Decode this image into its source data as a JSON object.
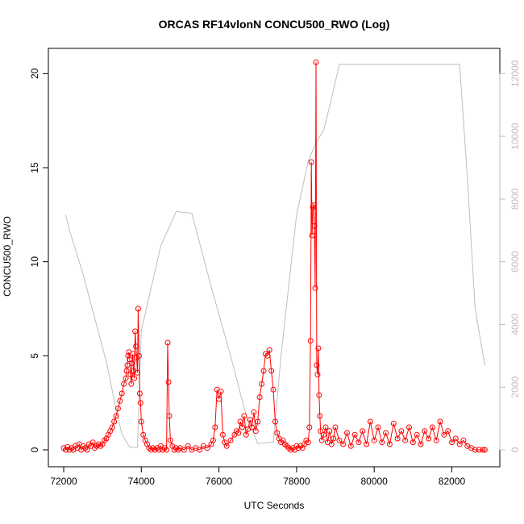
{
  "chart_data": {
    "type": "scatter",
    "title": "ORCAS RF14vlonN CONCU500_RWO (Log)",
    "xlabel": "UTC Seconds",
    "ylabel": "CONCU500_RWO",
    "xlim": [
      72000,
      82900
    ],
    "ylim": [
      0,
      21
    ],
    "y2lim": [
      0,
      12600
    ],
    "x_ticks": [
      72000,
      74000,
      76000,
      78000,
      80000,
      82000
    ],
    "y_ticks": [
      0,
      5,
      10,
      15,
      20
    ],
    "y2_ticks": [
      0,
      2000,
      4000,
      6000,
      8000,
      10000,
      12000
    ],
    "grid": false,
    "colors": {
      "series": "#ff0000",
      "altitude": "#bebebe"
    },
    "series": [
      {
        "role": "concentration",
        "x": [
          72000,
          72050,
          72100,
          72150,
          72200,
          72250,
          72300,
          72350,
          72400,
          72450,
          72500,
          72550,
          72600,
          72650,
          72700,
          72750,
          72800,
          72850,
          72900,
          72950,
          73000,
          73050,
          73100,
          73150,
          73200,
          73250,
          73300,
          73350,
          73400,
          73450,
          73500,
          73550,
          73600,
          73620,
          73640,
          73660,
          73680,
          73700,
          73720,
          73740,
          73760,
          73780,
          73800,
          73820,
          73840,
          73860,
          73880,
          73900,
          73920,
          73940,
          73960,
          73980,
          74000,
          74050,
          74100,
          74150,
          74200,
          74250,
          74300,
          74350,
          74400,
          74450,
          74500,
          74550,
          74600,
          74650,
          74680,
          74700,
          74720,
          74750,
          74800,
          74850,
          74900,
          74950,
          75000,
          75100,
          75200,
          75300,
          75400,
          75500,
          75600,
          75700,
          75800,
          75850,
          75900,
          75950,
          76000,
          76050,
          76100,
          76150,
          76200,
          76300,
          76400,
          76450,
          76500,
          76550,
          76600,
          76650,
          76700,
          76750,
          76800,
          76850,
          76900,
          76950,
          77000,
          77050,
          77100,
          77150,
          77200,
          77250,
          77300,
          77350,
          77400,
          77450,
          77500,
          77550,
          77600,
          77650,
          77700,
          77750,
          77800,
          77850,
          77900,
          77950,
          78000,
          78050,
          78100,
          78150,
          78200,
          78250,
          78300,
          78330,
          78360,
          78380,
          78400,
          78420,
          78440,
          78460,
          78480,
          78500,
          78520,
          78540,
          78560,
          78580,
          78600,
          78620,
          78650,
          78700,
          78750,
          78800,
          78850,
          78900,
          78950,
          79000,
          79100,
          79200,
          79300,
          79400,
          79500,
          79600,
          79700,
          79800,
          79900,
          80000,
          80100,
          80200,
          80300,
          80400,
          80500,
          80600,
          80700,
          80800,
          80900,
          81000,
          81100,
          81200,
          81300,
          81400,
          81500,
          81600,
          81700,
          81800,
          81900,
          82000,
          82100,
          82200,
          82300,
          82400,
          82500,
          82600,
          82700,
          82800,
          82850
        ],
        "y": [
          0.1,
          0,
          0.15,
          0,
          0.1,
          0,
          0.2,
          0.1,
          0.3,
          0,
          0.2,
          0.1,
          0,
          0.3,
          0.2,
          0.4,
          0.1,
          0.2,
          0.3,
          0.2,
          0.3,
          0.5,
          0.6,
          0.8,
          1.0,
          1.2,
          1.5,
          1.8,
          2.2,
          2.6,
          3.0,
          3.5,
          3.8,
          4.2,
          4.5,
          5.0,
          5.2,
          4.8,
          4.0,
          3.5,
          4.6,
          5.1,
          4.2,
          3.8,
          6.3,
          5.5,
          4.9,
          4.1,
          7.5,
          5.0,
          3.0,
          2.5,
          1.5,
          0.8,
          0.5,
          0.3,
          0.1,
          0,
          0.1,
          0,
          0.1,
          0,
          0.2,
          0,
          0.1,
          0,
          5.7,
          3.6,
          1.8,
          0.5,
          0.2,
          0,
          0.1,
          0,
          0.1,
          0,
          0.2,
          0,
          0.1,
          0,
          0.2,
          0.1,
          0.3,
          0.5,
          1.2,
          3.2,
          2.7,
          3.1,
          0.8,
          0.4,
          0.2,
          0.5,
          0.8,
          1.0,
          0.9,
          1.5,
          1.2,
          1.8,
          0.8,
          1.1,
          1.6,
          1.2,
          2.0,
          1.0,
          1.5,
          2.8,
          3.5,
          4.2,
          5.1,
          5.0,
          5.3,
          4.2,
          3.2,
          1.5,
          0.9,
          0.6,
          0.4,
          0.5,
          0.3,
          0.2,
          0.1,
          0,
          0.1,
          0,
          0.2,
          0.1,
          0.2,
          0.1,
          0.3,
          0.5,
          0.4,
          1.2,
          5.8,
          15.3,
          11.4,
          12.9,
          13.0,
          11.9,
          8.6,
          20.6,
          4.5,
          4.0,
          5.4,
          2.9,
          1.8,
          1.0,
          0.5,
          0.8,
          1.2,
          0.4,
          1.0,
          0.3,
          0.6,
          1.2,
          0.5,
          0.3,
          0.9,
          0.2,
          0.8,
          0.4,
          1.0,
          0.3,
          1.5,
          0.5,
          1.2,
          0.4,
          0.9,
          0.3,
          1.4,
          0.6,
          1.0,
          0.5,
          1.2,
          0.4,
          0.8,
          0.3,
          1.0,
          0.6,
          1.2,
          0.5,
          1.5,
          0.8,
          1.0,
          0.4,
          0.6,
          0.3,
          0.5,
          0.2,
          0.1,
          0,
          0,
          0,
          0
        ]
      },
      {
        "role": "altitude",
        "axis": "right",
        "x": [
          72050,
          72150,
          72500,
          72800,
          73100,
          73300,
          73500,
          73700,
          73900,
          74000,
          74500,
          74900,
          75300,
          75800,
          76300,
          76700,
          77000,
          77400,
          77600,
          78000,
          78300,
          78500,
          78700,
          78900,
          79100,
          80000,
          81000,
          82000,
          82200,
          82400,
          82600,
          82850
        ],
        "y": [
          7500,
          7000,
          5600,
          4200,
          2800,
          1600,
          500,
          80,
          80,
          3800,
          6500,
          7600,
          7550,
          5200,
          3000,
          1100,
          200,
          250,
          3000,
          7500,
          9200,
          9800,
          10200,
          11200,
          12300,
          12300,
          12300,
          12300,
          12300,
          8700,
          4500,
          2700
        ]
      }
    ]
  }
}
